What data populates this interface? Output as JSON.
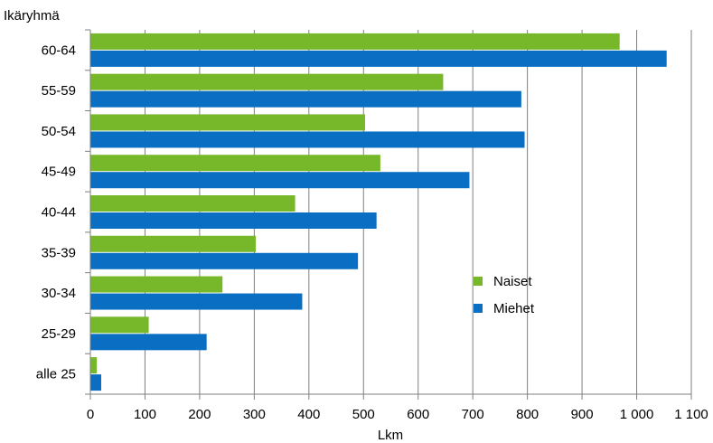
{
  "chart_data": {
    "type": "bar",
    "orientation": "horizontal",
    "ylabel": "Ikäryhmä",
    "xlabel": "Lkm",
    "categories": [
      "60-64",
      "55-59",
      "50-54",
      "45-49",
      "40-44",
      "35-39",
      "30-34",
      "25-29",
      "alle 25"
    ],
    "series": [
      {
        "name": "Naiset",
        "color": "#77b82a",
        "values": [
          968,
          645,
          502,
          530,
          374,
          302,
          241,
          106,
          11
        ]
      },
      {
        "name": "Miehet",
        "color": "#0a6fc2",
        "values": [
          1054,
          788,
          794,
          693,
          523,
          489,
          387,
          212,
          19
        ]
      }
    ],
    "xlim": [
      0,
      1100
    ],
    "x_ticks": [
      0,
      100,
      200,
      300,
      400,
      500,
      600,
      700,
      800,
      900,
      1000,
      1100
    ],
    "x_tick_labels": [
      "0",
      "100",
      "200",
      "300",
      "400",
      "500",
      "600",
      "700",
      "800",
      "900",
      "1 000",
      "1 100"
    ],
    "grid": "vertical",
    "legend_position": "right"
  }
}
